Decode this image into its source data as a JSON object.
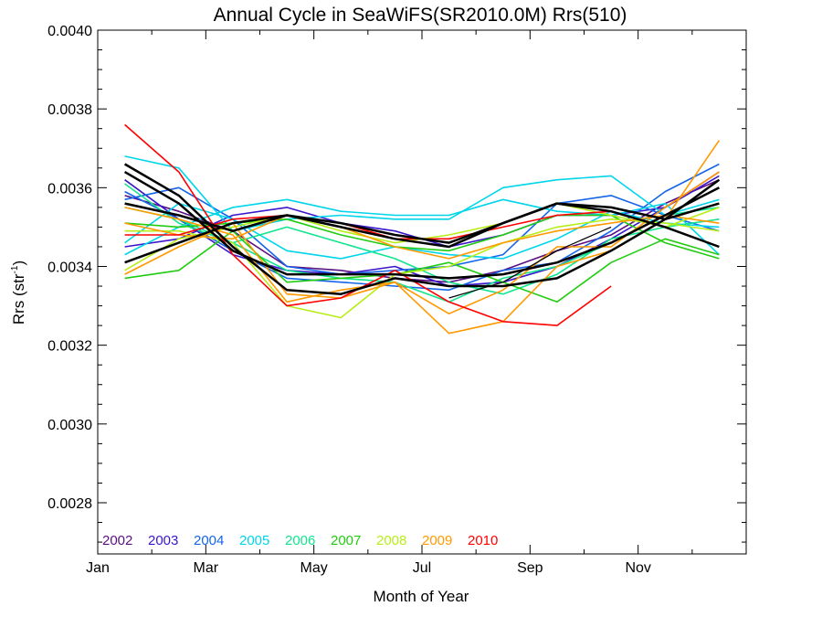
{
  "chart_data": {
    "type": "line",
    "title": "Annual Cycle in SeaWiFS(SR2010.0M) Rrs(510)",
    "xlabel": "Month of Year",
    "ylabel_main": "Rrs (str",
    "ylabel_sup": "-1",
    "ylabel_tail": ")",
    "xlim": [
      1,
      13
    ],
    "ylim": [
      0.00267,
      0.004
    ],
    "x_ticks": [
      {
        "value": 1,
        "label": "Jan"
      },
      {
        "value": 3,
        "label": "Mar"
      },
      {
        "value": 5,
        "label": "May"
      },
      {
        "value": 7,
        "label": "Jul"
      },
      {
        "value": 9,
        "label": "Sep"
      },
      {
        "value": 11,
        "label": "Nov"
      }
    ],
    "y_ticks": [
      {
        "value": 0.0028,
        "label": "0.0028"
      },
      {
        "value": 0.003,
        "label": "0.0030"
      },
      {
        "value": 0.0032,
        "label": "0.0032"
      },
      {
        "value": 0.0034,
        "label": "0.0034"
      },
      {
        "value": 0.0036,
        "label": "0.0036"
      },
      {
        "value": 0.0038,
        "label": "0.0038"
      },
      {
        "value": 0.004,
        "label": "0.0040"
      }
    ],
    "legend_placement": "bottom-left",
    "legend": [
      {
        "label": "2002",
        "color": "#5a0f82"
      },
      {
        "label": "2003",
        "color": "#3a16cc"
      },
      {
        "label": "2004",
        "color": "#1565e8"
      },
      {
        "label": "2005",
        "color": "#00d5ea"
      },
      {
        "label": "2006",
        "color": "#11e58e"
      },
      {
        "label": "2007",
        "color": "#22cc11"
      },
      {
        "label": "2008",
        "color": "#b8ee18"
      },
      {
        "label": "2009",
        "color": "#ff9900"
      },
      {
        "label": "2010",
        "color": "#ff0000"
      }
    ],
    "x": [
      1.5,
      2.5,
      3.5,
      4.5,
      5.5,
      6.5,
      7.5,
      8.5,
      9.5,
      10.5,
      11.5,
      12.5
    ],
    "series": [
      {
        "color": "#000000",
        "width": 2.5,
        "values": [
          0.00356,
          0.00353,
          0.00349,
          0.00353,
          0.00351,
          0.00348,
          0.00346,
          0.00351,
          0.00356,
          0.00354,
          0.0035,
          0.00345
        ]
      },
      {
        "color": "#000000",
        "width": 2.5,
        "values": [
          0.00341,
          0.00346,
          0.00351,
          0.00353,
          0.0035,
          0.00347,
          0.00345,
          0.00351,
          0.00356,
          0.00355,
          0.00352,
          0.00356
        ]
      },
      {
        "color": "#000000",
        "width": 2.5,
        "values": [
          0.00364,
          0.00356,
          0.00344,
          0.00338,
          0.00338,
          0.00338,
          0.00337,
          0.00338,
          0.00341,
          0.00346,
          0.00353,
          0.0036
        ]
      },
      {
        "color": "#000000",
        "width": 2.5,
        "values": [
          0.00366,
          0.00358,
          0.00345,
          0.00334,
          0.00333,
          0.00337,
          0.00335,
          0.00335,
          0.00337,
          0.00344,
          0.00352,
          0.00362
        ]
      },
      {
        "color": "#000000",
        "width": 1.2,
        "values": [
          null,
          null,
          null,
          null,
          null,
          null,
          0.00332,
          0.00336,
          0.00344,
          0.0035,
          null,
          null
        ]
      },
      {
        "color": "#5a0f82",
        "width": 1.6,
        "values": [
          0.00358,
          0.00354,
          0.00349,
          0.0034,
          0.00339,
          0.00337,
          0.00336,
          0.00339,
          0.00344,
          0.00348,
          0.00356,
          0.00362
        ]
      },
      {
        "color": "#3a16cc",
        "width": 1.6,
        "values": [
          0.00345,
          0.00347,
          0.00353,
          0.00355,
          0.00351,
          0.00349,
          0.00345,
          0.00348,
          0.00353,
          0.00353,
          0.00355,
          0.00363
        ]
      },
      {
        "color": "#3a16cc",
        "width": 1.6,
        "values": [
          0.00362,
          0.00352,
          0.00343,
          0.00339,
          0.00338,
          0.0034,
          0.00335,
          0.00336,
          0.0034,
          0.00347,
          0.00355,
          0.00364
        ]
      },
      {
        "color": "#1565e8",
        "width": 1.6,
        "values": [
          0.00357,
          0.0036,
          0.00352,
          0.0034,
          0.00338,
          0.00339,
          0.0034,
          0.00343,
          0.00356,
          0.00358,
          0.00353,
          0.00349
        ]
      },
      {
        "color": "#1565e8",
        "width": 1.6,
        "values": [
          0.00359,
          0.00352,
          0.00344,
          0.00337,
          0.00336,
          0.00335,
          0.00334,
          0.00339,
          0.00341,
          0.00349,
          0.00359,
          0.00366
        ]
      },
      {
        "color": "#00d5ea",
        "width": 1.6,
        "values": [
          0.00368,
          0.00365,
          0.00349,
          0.00352,
          0.00353,
          0.00352,
          0.00352,
          0.0036,
          0.00362,
          0.00363,
          0.00353,
          0.00357
        ]
      },
      {
        "color": "#00d5ea",
        "width": 1.6,
        "values": [
          0.00343,
          0.0035,
          0.00355,
          0.00357,
          0.00354,
          0.00353,
          0.00353,
          0.00357,
          0.00354,
          0.00353,
          0.00356,
          0.00343
        ]
      },
      {
        "color": "#00d5ea",
        "width": 1.6,
        "values": [
          0.00346,
          0.00356,
          0.00352,
          0.00344,
          0.00342,
          0.00345,
          0.00343,
          0.00342,
          0.00347,
          0.00354,
          0.00351,
          0.0035
        ]
      },
      {
        "color": "#11e58e",
        "width": 1.6,
        "values": [
          0.00361,
          0.00351,
          0.00346,
          0.00339,
          0.00337,
          0.00336,
          0.00331,
          0.00337,
          0.0034,
          0.00346,
          0.00353,
          0.00355
        ]
      },
      {
        "color": "#11e58e",
        "width": 1.6,
        "values": [
          0.00355,
          0.00352,
          0.00346,
          0.0035,
          0.00346,
          0.00342,
          0.00336,
          0.00333,
          0.00338,
          0.00347,
          0.0035,
          0.00352
        ]
      },
      {
        "color": "#22cc11",
        "width": 1.6,
        "values": [
          0.00337,
          0.00339,
          0.00349,
          0.00336,
          0.00337,
          0.00338,
          0.00341,
          0.00336,
          0.00331,
          0.00341,
          0.00347,
          0.00343
        ]
      },
      {
        "color": "#22cc11",
        "width": 1.6,
        "values": [
          0.00351,
          0.0035,
          0.00351,
          0.00352,
          0.00348,
          0.00345,
          0.00344,
          0.00348,
          0.00353,
          0.00353,
          0.00346,
          0.00342
        ]
      },
      {
        "color": "#b8ee18",
        "width": 1.6,
        "values": [
          0.00349,
          0.00349,
          0.00346,
          0.0033,
          0.00327,
          0.00338,
          0.0034,
          0.00346,
          0.0035,
          0.00352,
          0.00351,
          0.00349
        ]
      },
      {
        "color": "#b8ee18",
        "width": 1.6,
        "values": [
          0.00339,
          0.00347,
          0.0035,
          0.00353,
          0.00349,
          0.00346,
          0.00348,
          0.00351,
          0.00356,
          0.00353,
          0.0035,
          0.00355
        ]
      },
      {
        "color": "#ff9900",
        "width": 1.6,
        "values": [
          0.00338,
          0.00345,
          0.00351,
          0.00333,
          0.00332,
          0.00336,
          0.00323,
          0.00326,
          0.0034,
          0.00344,
          0.00352,
          0.00372
        ]
      },
      {
        "color": "#ff9900",
        "width": 1.6,
        "values": [
          0.00355,
          0.00352,
          0.00348,
          0.00331,
          0.00334,
          0.00336,
          0.00328,
          0.00334,
          0.00345,
          0.00345,
          0.00355,
          0.00364
        ]
      },
      {
        "color": "#ff9900",
        "width": 1.6,
        "values": [
          0.00351,
          0.00348,
          0.00347,
          0.00353,
          0.0035,
          0.00345,
          0.00342,
          0.00346,
          0.00349,
          0.00351,
          0.00353,
          0.00351
        ]
      },
      {
        "color": "#ff0000",
        "width": 1.6,
        "values": [
          0.00376,
          0.00364,
          0.00343,
          0.0033,
          0.00332,
          0.00339,
          0.00331,
          0.00326,
          0.00325,
          0.00335,
          null,
          null
        ]
      },
      {
        "color": "#ff0000",
        "width": 1.6,
        "values": [
          0.00348,
          0.00348,
          0.00352,
          0.00353,
          0.00351,
          0.00347,
          0.00347,
          0.0035,
          0.00353,
          0.00354,
          null,
          null
        ]
      }
    ]
  }
}
